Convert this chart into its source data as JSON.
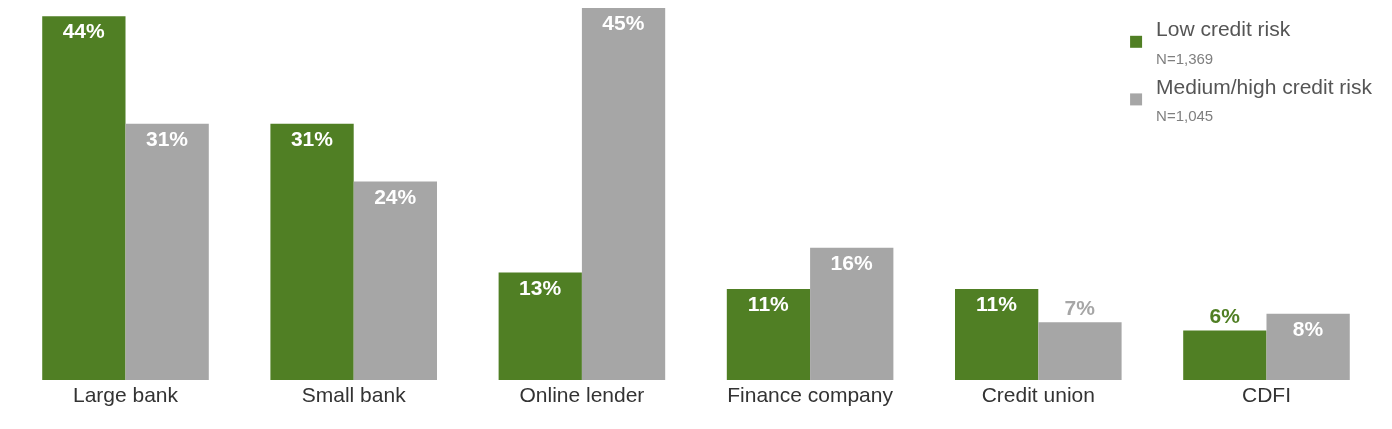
{
  "chart_data": {
    "type": "bar",
    "categories": [
      "Large bank",
      "Small bank",
      "Online lender",
      "Finance company",
      "Credit union",
      "CDFI"
    ],
    "series": [
      {
        "name": "Low credit risk",
        "color": "#507f24",
        "values": [
          44,
          31,
          13,
          11,
          11,
          6
        ],
        "value_labels": [
          "44%",
          "31%",
          "13%",
          "11%",
          "11%",
          "6%"
        ]
      },
      {
        "name": "Medium/high credit risk",
        "color": "#a6a6a6",
        "values": [
          31,
          24,
          45,
          16,
          7,
          8
        ],
        "value_labels": [
          "31%",
          "24%",
          "45%",
          "16%",
          "7%",
          "8%"
        ]
      }
    ],
    "annotations": [
      "N=1,369",
      "N=1,045"
    ],
    "legend": "top right"
  }
}
